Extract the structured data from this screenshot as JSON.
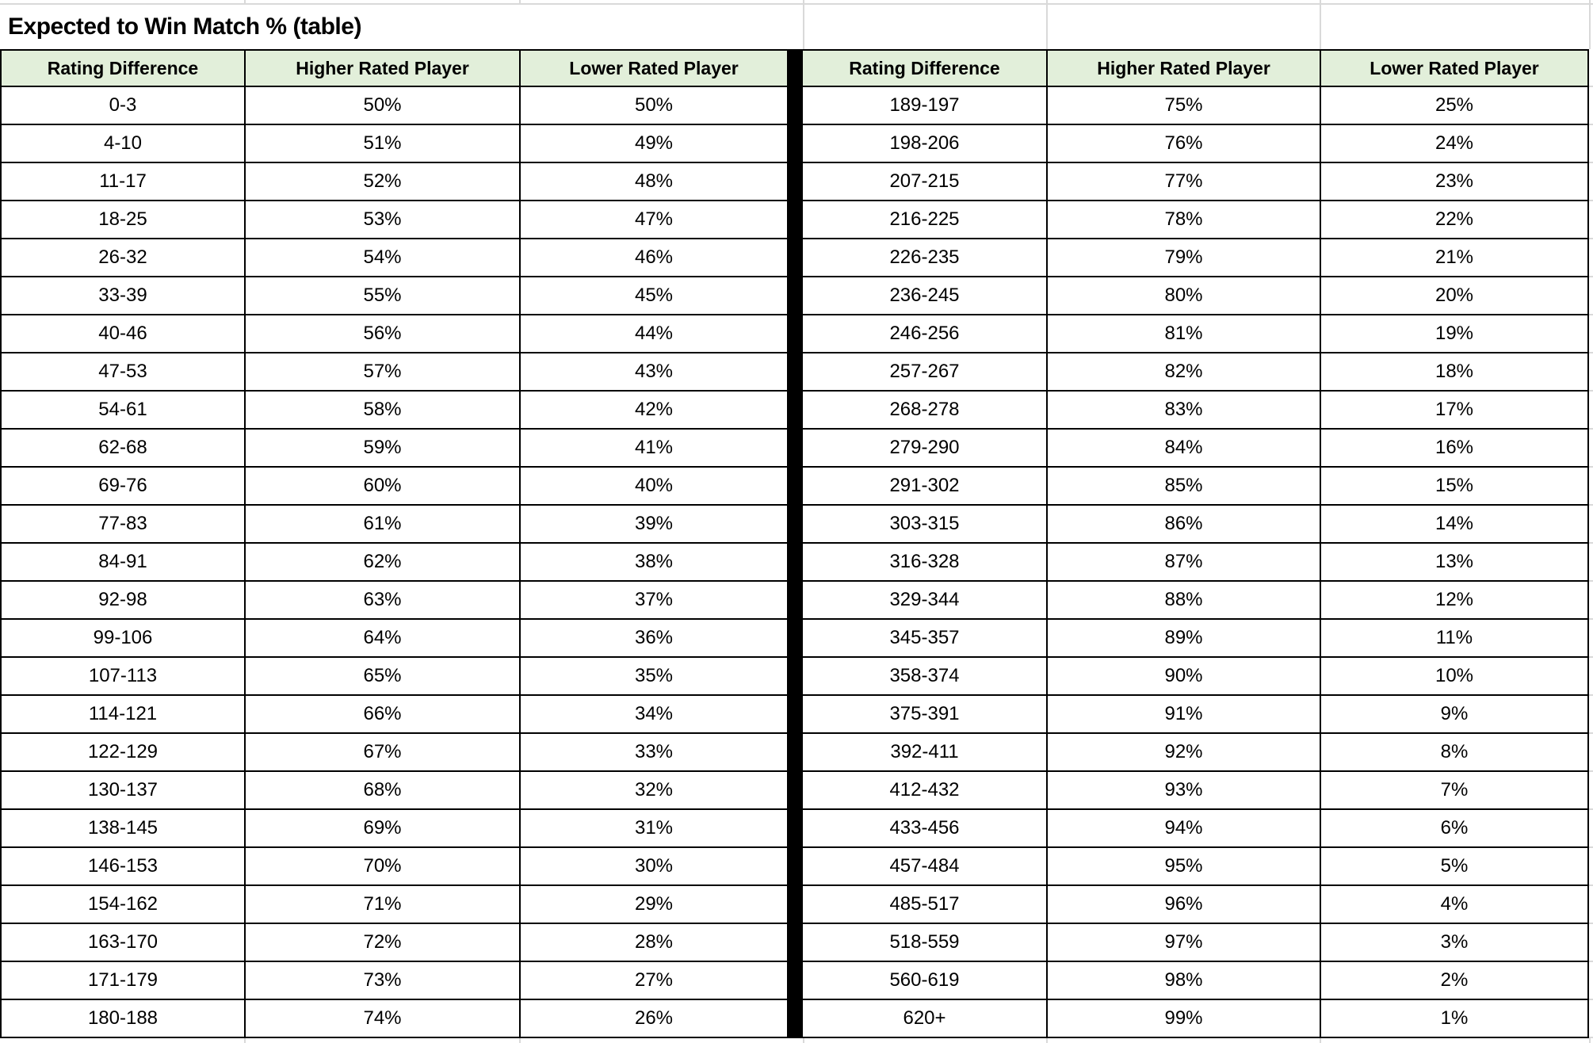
{
  "title": "Expected to Win Match % (table)",
  "colors": {
    "header_bg": "#e2efda",
    "table_border": "#000000",
    "divider": "#000000",
    "gridline": "#d9d9d9",
    "text": "#000000",
    "background": "#ffffff"
  },
  "chart_data": {
    "type": "table",
    "title": "Expected to Win Match % (table)",
    "columns": [
      "Rating Difference",
      "Higher Rated Player",
      "Lower Rated Player"
    ],
    "layout": "two tables side by side separated by a thick black vertical divider; header row pale green; all cells center-aligned; black gridline borders",
    "left_rows": [
      [
        "0-3",
        "50%",
        "50%"
      ],
      [
        "4-10",
        "51%",
        "49%"
      ],
      [
        "11-17",
        "52%",
        "48%"
      ],
      [
        "18-25",
        "53%",
        "47%"
      ],
      [
        "26-32",
        "54%",
        "46%"
      ],
      [
        "33-39",
        "55%",
        "45%"
      ],
      [
        "40-46",
        "56%",
        "44%"
      ],
      [
        "47-53",
        "57%",
        "43%"
      ],
      [
        "54-61",
        "58%",
        "42%"
      ],
      [
        "62-68",
        "59%",
        "41%"
      ],
      [
        "69-76",
        "60%",
        "40%"
      ],
      [
        "77-83",
        "61%",
        "39%"
      ],
      [
        "84-91",
        "62%",
        "38%"
      ],
      [
        "92-98",
        "63%",
        "37%"
      ],
      [
        "99-106",
        "64%",
        "36%"
      ],
      [
        "107-113",
        "65%",
        "35%"
      ],
      [
        "114-121",
        "66%",
        "34%"
      ],
      [
        "122-129",
        "67%",
        "33%"
      ],
      [
        "130-137",
        "68%",
        "32%"
      ],
      [
        "138-145",
        "69%",
        "31%"
      ],
      [
        "146-153",
        "70%",
        "30%"
      ],
      [
        "154-162",
        "71%",
        "29%"
      ],
      [
        "163-170",
        "72%",
        "28%"
      ],
      [
        "171-179",
        "73%",
        "27%"
      ],
      [
        "180-188",
        "74%",
        "26%"
      ]
    ],
    "right_rows": [
      [
        "189-197",
        "75%",
        "25%"
      ],
      [
        "198-206",
        "76%",
        "24%"
      ],
      [
        "207-215",
        "77%",
        "23%"
      ],
      [
        "216-225",
        "78%",
        "22%"
      ],
      [
        "226-235",
        "79%",
        "21%"
      ],
      [
        "236-245",
        "80%",
        "20%"
      ],
      [
        "246-256",
        "81%",
        "19%"
      ],
      [
        "257-267",
        "82%",
        "18%"
      ],
      [
        "268-278",
        "83%",
        "17%"
      ],
      [
        "279-290",
        "84%",
        "16%"
      ],
      [
        "291-302",
        "85%",
        "15%"
      ],
      [
        "303-315",
        "86%",
        "14%"
      ],
      [
        "316-328",
        "87%",
        "13%"
      ],
      [
        "329-344",
        "88%",
        "12%"
      ],
      [
        "345-357",
        "89%",
        "11%"
      ],
      [
        "358-374",
        "90%",
        "10%"
      ],
      [
        "375-391",
        "91%",
        "9%"
      ],
      [
        "392-411",
        "92%",
        "8%"
      ],
      [
        "412-432",
        "93%",
        "7%"
      ],
      [
        "433-456",
        "94%",
        "6%"
      ],
      [
        "457-484",
        "95%",
        "5%"
      ],
      [
        "485-517",
        "96%",
        "4%"
      ],
      [
        "518-559",
        "97%",
        "3%"
      ],
      [
        "560-619",
        "98%",
        "2%"
      ],
      [
        "620+",
        "99%",
        "1%"
      ]
    ]
  }
}
